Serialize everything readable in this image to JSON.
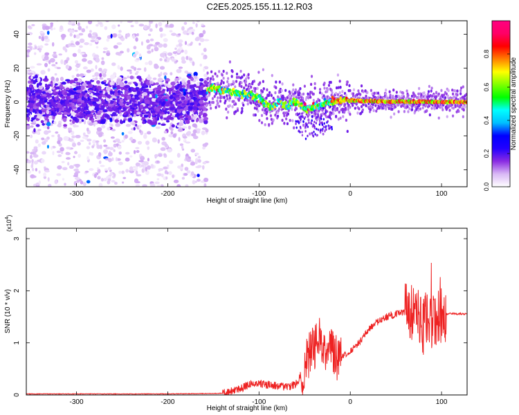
{
  "title": "C2E5.2025.155.11.12.R03",
  "chart_data": [
    {
      "type": "heatmap",
      "xlabel": "Height of straight line (km)",
      "ylabel": "Frequency (Hz)",
      "xlim": [
        -355,
        128
      ],
      "ylim": [
        -50,
        48
      ],
      "xticks": [
        -300,
        -200,
        -100,
        0,
        100
      ],
      "yticks": [
        -40,
        -20,
        0,
        20,
        40
      ],
      "colorbar": {
        "label": "Normalized spectral amplitude",
        "range": [
          0,
          1
        ],
        "ticks": [
          0.0,
          0.2,
          0.4,
          0.6,
          0.8
        ],
        "tick_labels": [
          "0.0",
          "0.2",
          "0.4",
          "0.6",
          "0.8"
        ],
        "colormap": [
          "#ffffff",
          "#d9b8f5",
          "#8a2be2",
          "#2200ff",
          "#0000ff",
          "#00bfff",
          "#00ffff",
          "#00ff00",
          "#7fff00",
          "#ffff00",
          "#ff8000",
          "#ff0000",
          "#ff0066",
          "#ff0080"
        ]
      },
      "ridge": {
        "x": [
          -157,
          -150,
          -140,
          -130,
          -120,
          -110,
          -100,
          -92,
          -85,
          -78,
          -70,
          -62,
          -55,
          -48,
          -40,
          -30,
          -20,
          -10,
          0,
          20,
          40,
          60,
          80,
          100,
          128
        ],
        "frequency": [
          7,
          8,
          7,
          6,
          5,
          4,
          3,
          -2,
          -3,
          0,
          -3,
          1,
          -2,
          -4,
          -3,
          -1,
          0,
          1,
          1,
          0.5,
          0.3,
          0.2,
          0.2,
          0.1,
          0
        ]
      }
    },
    {
      "type": "line",
      "xlabel": "Height of straight line (km)",
      "ylabel": "SNR (10 * v/v)",
      "y_scale_label": "(x10",
      "y_scale_exponent": "4",
      "y_scale_suffix": ")",
      "xlim": [
        -355,
        128
      ],
      "ylim": [
        0,
        3.2
      ],
      "xticks": [
        -300,
        -200,
        -100,
        0,
        100
      ],
      "yticks": [
        0,
        1,
        2,
        3
      ],
      "series": [
        {
          "color": "#ee2222",
          "x": [
            -355,
            -300,
            -200,
            -140,
            -120,
            -110,
            -100,
            -90,
            -80,
            -70,
            -60,
            -55,
            -50,
            -45,
            -40,
            -35,
            -30,
            -25,
            -20,
            -15,
            -10,
            0,
            10,
            20,
            30,
            40,
            50,
            60,
            70,
            75,
            80,
            85,
            90,
            95,
            100,
            105,
            110,
            128
          ],
          "values": [
            0.02,
            0.02,
            0.02,
            0.03,
            0.12,
            0.2,
            0.22,
            0.2,
            0.18,
            0.15,
            0.2,
            0.35,
            0.5,
            0.8,
            0.9,
            1.1,
            1.0,
            0.8,
            0.9,
            0.7,
            0.7,
            0.85,
            1.0,
            1.25,
            1.4,
            1.5,
            1.55,
            1.6,
            1.6,
            1.5,
            1.3,
            1.6,
            1.4,
            1.5,
            1.5,
            1.55,
            1.56,
            1.55
          ]
        }
      ]
    }
  ]
}
